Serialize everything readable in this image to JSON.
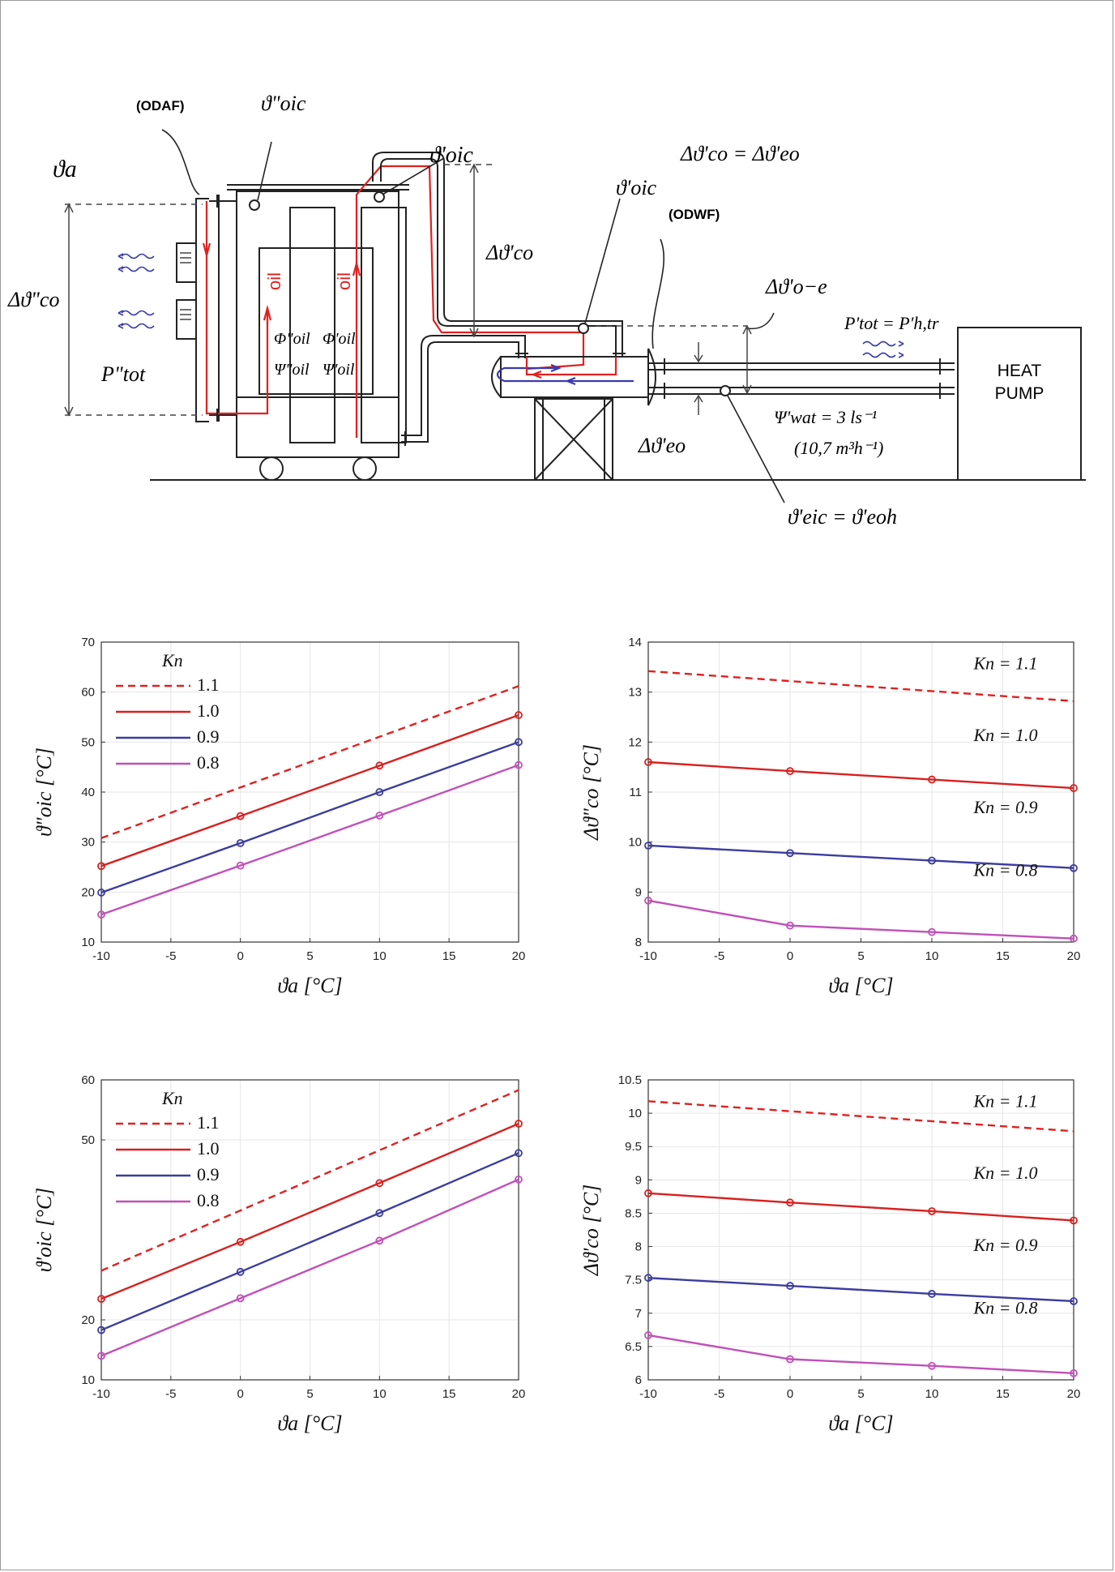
{
  "diagram": {
    "odaf_label": "(ODAF)",
    "odwf_label": "(ODWF)",
    "oil_label": "oil",
    "heat_pump": [
      "HEAT",
      "PUMP"
    ],
    "theta_a": "ϑa",
    "theta_oic_dd": "ϑ\"oic",
    "theta_oic_p_top": "ϑ'oic",
    "theta_oic_p_mid": "ϑ'oic",
    "delta_co_eq": "Δϑ'co = Δϑ'eo",
    "delta_co_dd": "Δϑ\"co",
    "delta_co_p": "Δϑ'co",
    "delta_oe": "Δϑ'o−e",
    "delta_eo": "Δϑ'eo",
    "p_tot_dd": "P\"tot",
    "p_tot_eq": "P'tot = P'h,tr",
    "phi_oil_dd": "Φ\"oil",
    "phi_oil_p": "Φ'oil",
    "psi_oil_dd": "Ψ\"oil",
    "psi_oil_p": "Ψ'oil",
    "psi_wat": "Ψ'wat = 3 ls⁻¹",
    "flow_m3h": "(10,7 m³h⁻¹)",
    "theta_eic_eq": "ϑ'eic = ϑ'eoh"
  },
  "colors": {
    "k11": "#e02020",
    "k10": "#d92020",
    "k09": "#3c3ca0",
    "k08": "#c050b8",
    "water": "#3a3ab0"
  },
  "chart_data": [
    {
      "type": "line",
      "xlabel": "ϑa [°C]",
      "ylabel": "ϑ\"oic [°C]",
      "xlim": [
        -10,
        20
      ],
      "ylim": [
        10,
        70
      ],
      "xticks": [
        -10,
        -5,
        0,
        5,
        10,
        15,
        20
      ],
      "yticks": [
        10,
        20,
        30,
        40,
        50,
        60,
        70
      ],
      "legend_title": "Kn",
      "legend": "top-left",
      "grid": true,
      "series": [
        {
          "name": "1.1",
          "x": [
            -10,
            20
          ],
          "y": [
            30.8,
            61.2
          ],
          "dashed": true,
          "markers": false
        },
        {
          "name": "1.0",
          "x": [
            -10,
            0,
            10,
            20
          ],
          "y": [
            25.2,
            35.2,
            45.3,
            55.4
          ],
          "markers": true
        },
        {
          "name": "0.9",
          "x": [
            -10,
            0,
            10,
            20
          ],
          "y": [
            19.9,
            29.8,
            40.0,
            50.0
          ],
          "markers": true
        },
        {
          "name": "0.8",
          "x": [
            -10,
            0,
            10,
            20
          ],
          "y": [
            15.5,
            25.3,
            35.3,
            45.4
          ],
          "markers": true
        }
      ]
    },
    {
      "type": "line",
      "xlabel": "ϑa [°C]",
      "ylabel": "Δϑ\"co [°C]",
      "xlim": [
        -10,
        20
      ],
      "ylim": [
        8,
        14
      ],
      "xticks": [
        -10,
        -5,
        0,
        5,
        10,
        15,
        20
      ],
      "yticks": [
        8,
        9,
        10,
        11,
        12,
        13,
        14
      ],
      "grid": true,
      "series": [
        {
          "name": "Kn = 1.1",
          "x": [
            -10,
            20
          ],
          "y": [
            13.42,
            12.82
          ],
          "dashed": true,
          "markers": false
        },
        {
          "name": "Kn = 1.0",
          "x": [
            -10,
            0,
            10,
            20
          ],
          "y": [
            11.6,
            11.42,
            11.25,
            11.08
          ],
          "markers": true
        },
        {
          "name": "Kn = 0.9",
          "x": [
            -10,
            0,
            10,
            20
          ],
          "y": [
            9.93,
            9.78,
            9.63,
            9.48
          ],
          "markers": true
        },
        {
          "name": "Kn = 0.8",
          "x": [
            -10,
            0,
            10,
            20
          ],
          "y": [
            8.83,
            8.33,
            8.2,
            8.07
          ],
          "markers": true
        }
      ]
    },
    {
      "type": "line",
      "xlabel": "ϑa [°C]",
      "ylabel": "ϑ'oic [°C]",
      "xlim": [
        -10,
        20
      ],
      "ylim": [
        10,
        60
      ],
      "xticks": [
        -10,
        -5,
        0,
        5,
        10,
        15,
        20
      ],
      "yticks": [
        10,
        20,
        50,
        60
      ],
      "legend_title": "Kn",
      "legend": "top-left",
      "grid": true,
      "series": [
        {
          "name": "1.1",
          "x": [
            -10,
            20
          ],
          "y": [
            28.2,
            58.3
          ],
          "dashed": true,
          "markers": false
        },
        {
          "name": "1.0",
          "x": [
            -10,
            0,
            10,
            20
          ],
          "y": [
            23.5,
            33.0,
            42.8,
            52.7
          ],
          "markers": true
        },
        {
          "name": "0.9",
          "x": [
            -10,
            0,
            10,
            20
          ],
          "y": [
            18.3,
            28.0,
            37.8,
            47.8
          ],
          "markers": true
        },
        {
          "name": "0.8",
          "x": [
            -10,
            0,
            10,
            20
          ],
          "y": [
            14.0,
            23.6,
            33.2,
            43.4
          ],
          "markers": true
        }
      ]
    },
    {
      "type": "line",
      "xlabel": "ϑa [°C]",
      "ylabel": "Δϑ'co [°C]",
      "xlim": [
        -10,
        20
      ],
      "ylim": [
        6,
        10.5
      ],
      "xticks": [
        -10,
        -5,
        0,
        5,
        10,
        15,
        20
      ],
      "yticks": [
        6,
        6.5,
        7,
        7.5,
        8,
        8.5,
        9,
        9.5,
        10,
        10.5
      ],
      "grid": true,
      "series": [
        {
          "name": "Kn = 1.1",
          "x": [
            -10,
            20
          ],
          "y": [
            10.18,
            9.73
          ],
          "dashed": true,
          "markers": false
        },
        {
          "name": "Kn = 1.0",
          "x": [
            -10,
            0,
            10,
            20
          ],
          "y": [
            8.8,
            8.66,
            8.53,
            8.39
          ],
          "markers": true
        },
        {
          "name": "Kn = 0.9",
          "x": [
            -10,
            0,
            10,
            20
          ],
          "y": [
            7.53,
            7.41,
            7.29,
            7.18
          ],
          "markers": true
        },
        {
          "name": "Kn = 0.8",
          "x": [
            -10,
            0,
            10,
            20
          ],
          "y": [
            6.67,
            6.31,
            6.21,
            6.1
          ],
          "markers": true
        }
      ]
    }
  ]
}
